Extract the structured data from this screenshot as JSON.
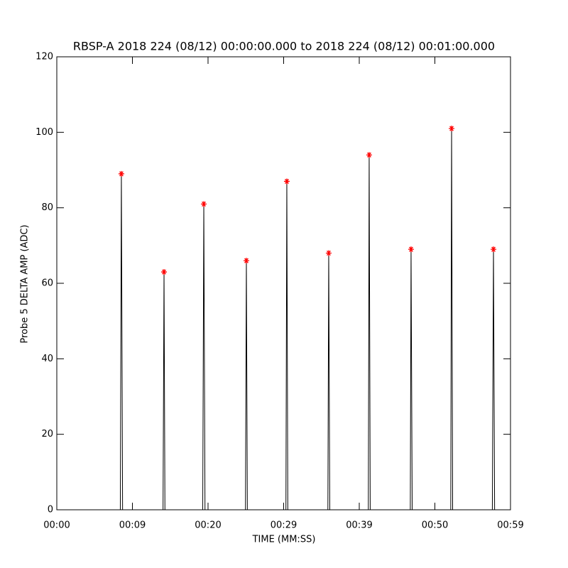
{
  "chart_data": {
    "type": "line",
    "title": "RBSP-A 2018 224 (08/12) 00:00:00.000 to 2018 224 (08/12) 00:01:00.000",
    "xlabel": "TIME (MM:SS)",
    "ylabel": "Probe 5 DELTA AMP (ADC)",
    "x": [
      0,
      8.4,
      8.54,
      8.7,
      14.05,
      14.18,
      14.3,
      19.3,
      19.44,
      19.6,
      24.95,
      25.07,
      25.2,
      30.3,
      30.42,
      30.55,
      35.85,
      35.96,
      36.1,
      41.2,
      41.31,
      41.45,
      46.75,
      46.85,
      47.0,
      52.1,
      52.21,
      52.35,
      57.6,
      57.75,
      57.9,
      60
    ],
    "series": [
      {
        "color": "#000000",
        "values": [
          0,
          0,
          89,
          0,
          0,
          63,
          0,
          0,
          81,
          0,
          0,
          66,
          0,
          0,
          87,
          0,
          0,
          68,
          0,
          0,
          94,
          0,
          0,
          69,
          0,
          0,
          101,
          0,
          0,
          69,
          0,
          0
        ]
      }
    ],
    "peaks": {
      "color": "#ff0000",
      "x": [
        8.54,
        14.18,
        19.44,
        25.07,
        30.42,
        35.96,
        41.31,
        46.85,
        52.21,
        57.75
      ],
      "values": [
        89,
        63,
        81,
        66,
        87,
        68,
        94,
        69,
        101,
        69
      ]
    },
    "xlim": [
      0,
      60
    ],
    "xticks": [
      {
        "value": 0,
        "label": "00:00"
      },
      {
        "value": 10,
        "label": "00:09"
      },
      {
        "value": 20,
        "label": "00:20"
      },
      {
        "value": 30,
        "label": "00:29"
      },
      {
        "value": 40,
        "label": "00:39"
      },
      {
        "value": 50,
        "label": "00:50"
      },
      {
        "value": 60,
        "label": "00:59"
      }
    ],
    "ylim": [
      0,
      120
    ],
    "yticks": [
      0,
      20,
      40,
      60,
      80,
      100,
      120
    ]
  }
}
